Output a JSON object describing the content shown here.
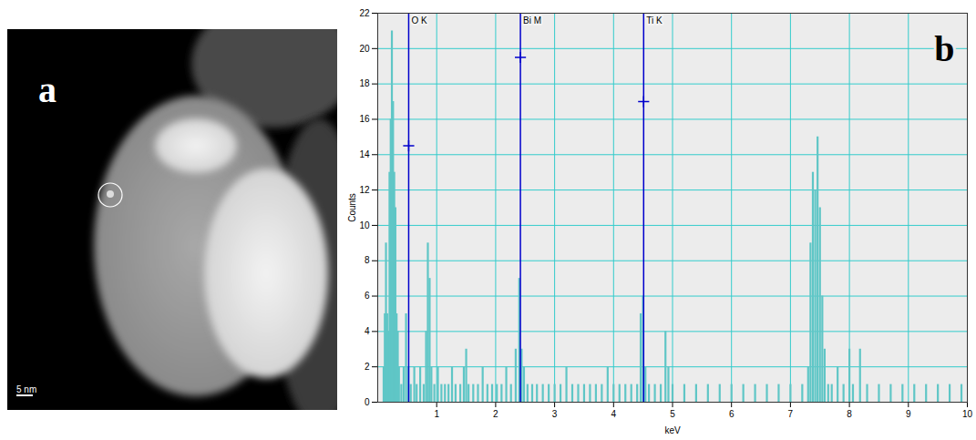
{
  "image_panel": {
    "panel_label": "a",
    "scale_bar": "5 nm"
  },
  "chart_data": {
    "type": "bar",
    "panel_label": "b",
    "x_label": "keV",
    "y_label": "Counts",
    "color": "#5fc6c6",
    "xlim": [
      0,
      10
    ],
    "ylim": [
      0,
      22
    ],
    "xticks": [
      1,
      2,
      3,
      4,
      5,
      6,
      7,
      8,
      9,
      10
    ],
    "yticks": [
      0,
      2,
      4,
      6,
      8,
      10,
      12,
      14,
      16,
      18,
      20,
      22
    ],
    "grid": true,
    "x": [
      0.1,
      0.12,
      0.14,
      0.16,
      0.18,
      0.2,
      0.22,
      0.24,
      0.26,
      0.28,
      0.3,
      0.32,
      0.34,
      0.36,
      0.4,
      0.44,
      0.48,
      0.52,
      0.56,
      0.62,
      0.66,
      0.72,
      0.78,
      0.82,
      0.85,
      0.88,
      0.91,
      0.96,
      1.02,
      1.08,
      1.14,
      1.2,
      1.26,
      1.32,
      1.4,
      1.46,
      1.5,
      1.54,
      1.62,
      1.7,
      1.78,
      1.86,
      1.94,
      2.02,
      2.1,
      2.18,
      2.26,
      2.34,
      2.4,
      2.44,
      2.48,
      2.54,
      2.62,
      2.7,
      2.8,
      2.9,
      3.0,
      3.1,
      3.2,
      3.3,
      3.4,
      3.5,
      3.6,
      3.7,
      3.8,
      3.9,
      4.0,
      4.1,
      4.2,
      4.3,
      4.4,
      4.46,
      4.5,
      4.54,
      4.6,
      4.7,
      4.8,
      4.88,
      4.93,
      5.0,
      5.2,
      5.4,
      5.6,
      5.8,
      6.0,
      6.2,
      6.4,
      6.6,
      6.8,
      7.0,
      7.2,
      7.3,
      7.34,
      7.38,
      7.42,
      7.46,
      7.5,
      7.54,
      7.58,
      7.64,
      7.7,
      7.8,
      7.9,
      8.0,
      8.06,
      8.18,
      8.3,
      8.5,
      8.7,
      8.9,
      9.1,
      9.3,
      9.5,
      9.7,
      9.9
    ],
    "values": [
      2,
      5,
      9,
      5,
      4,
      13,
      16,
      21,
      17,
      13,
      11,
      5,
      4,
      2,
      1,
      2,
      5,
      2,
      1,
      2,
      1,
      2,
      1,
      4,
      9,
      7,
      2,
      1,
      2,
      1,
      1,
      1,
      2,
      1,
      1,
      2,
      3,
      1,
      1,
      1,
      2,
      1,
      1,
      1,
      1,
      2,
      1,
      3,
      7,
      3,
      2,
      1,
      1,
      1,
      1,
      1,
      1,
      1,
      2,
      1,
      1,
      1,
      1,
      1,
      1,
      2,
      1,
      1,
      1,
      1,
      1,
      5,
      6,
      2,
      1,
      1,
      1,
      4,
      2,
      1,
      1,
      1,
      1,
      1,
      1,
      1,
      1,
      1,
      1,
      1,
      1,
      2,
      9,
      13,
      12,
      15,
      11,
      6,
      3,
      1,
      1,
      2,
      1,
      3,
      1,
      3,
      1,
      1,
      1,
      1,
      1,
      1,
      1,
      1,
      1
    ],
    "annotations": [
      {
        "label": "O K",
        "x": 0.525,
        "y": 14.5
      },
      {
        "label": "Bi M",
        "x": 2.42,
        "y": 19.5
      },
      {
        "label": "Ti K",
        "x": 4.51,
        "y": 17
      }
    ],
    "annotation_color": "#0000cc"
  }
}
